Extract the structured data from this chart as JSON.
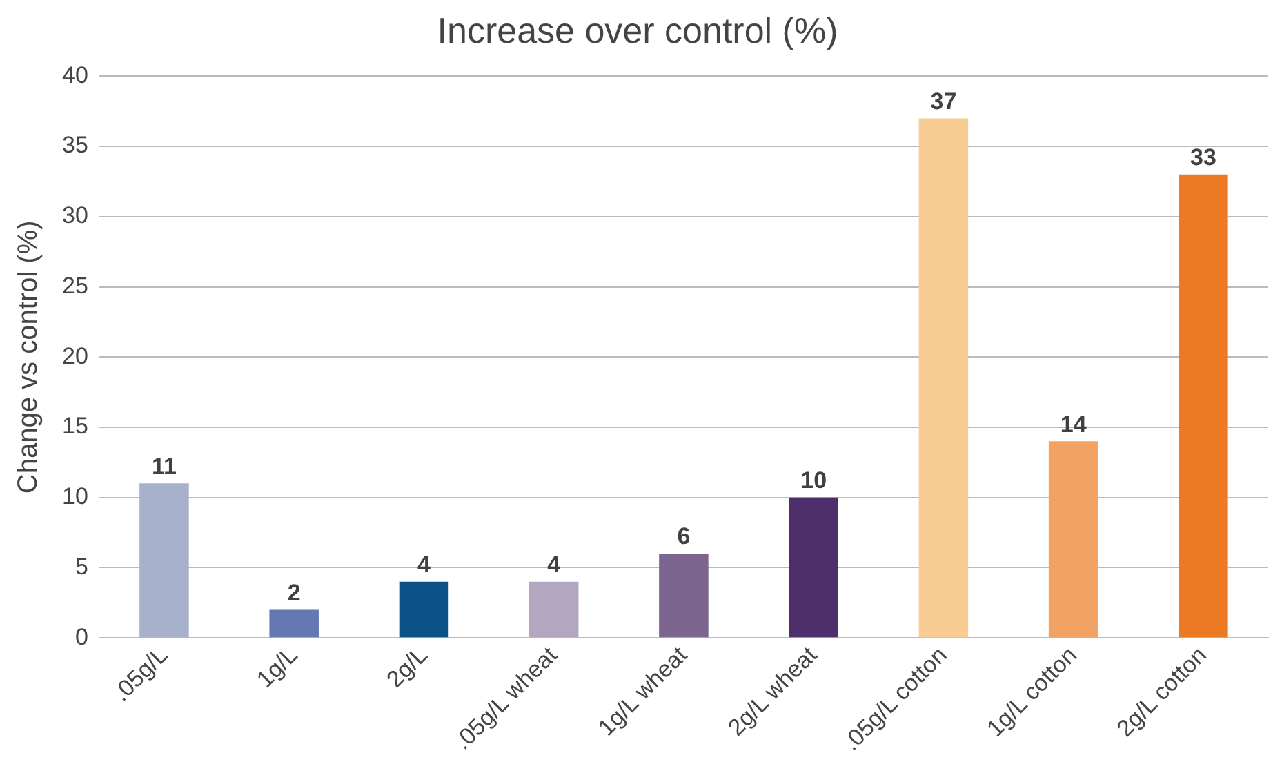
{
  "chart_data": {
    "type": "bar",
    "title": "Increase over control (%)",
    "ylabel": "Change vs control (%)",
    "categories": [
      ".05g/L",
      "1g/L",
      "2g/L",
      ".05g/L wheat",
      "1g/L wheat",
      "2g/L wheat",
      ".05g/L cotton",
      "1g/L cotton",
      "2g/L cotton"
    ],
    "values": [
      11,
      2,
      4,
      4,
      6,
      10,
      37,
      14,
      33
    ],
    "colors": [
      "#a7b1cc",
      "#6478b4",
      "#0a5288",
      "#b2a6c0",
      "#7c6690",
      "#4f2f6b",
      "#f9cc94",
      "#f2a263",
      "#ec7a24"
    ],
    "ylim": [
      0,
      40
    ],
    "yticks": [
      0,
      5,
      10,
      15,
      20,
      25,
      30,
      35,
      40
    ],
    "grid": "y",
    "legend": false,
    "data_labels": true
  }
}
